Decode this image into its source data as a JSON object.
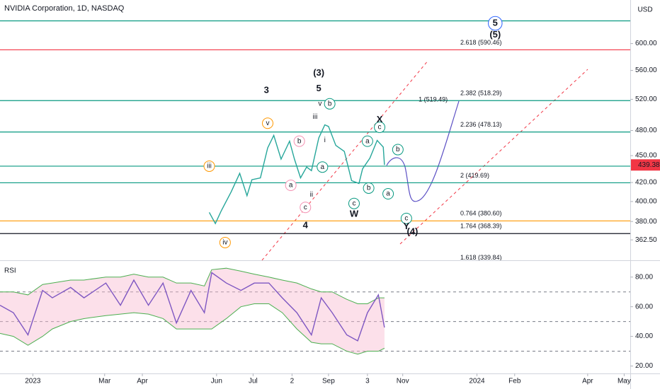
{
  "header": {
    "title": "NVIDIA Corporation, 1D, NASDAQ",
    "currency": "USD"
  },
  "chart_data": [
    {
      "type": "line",
      "color": "#26a69a",
      "log": true,
      "x": [
        "2023-05-26",
        "2023-05-31",
        "2023-06-05",
        "2023-06-13",
        "2023-06-20",
        "2023-06-26",
        "2023-06-30",
        "2023-07-07",
        "2023-07-13",
        "2023-07-18",
        "2023-07-24",
        "2023-07-31",
        "2023-08-04",
        "2023-08-09",
        "2023-08-14",
        "2023-08-18",
        "2023-08-24",
        "2023-08-29",
        "2023-09-01",
        "2023-09-07",
        "2023-09-14",
        "2023-09-20",
        "2023-09-26",
        "2023-09-29",
        "2023-10-05",
        "2023-10-11",
        "2023-10-16",
        "2023-10-17"
      ],
      "values": [
        389,
        378,
        391,
        410,
        430,
        406,
        423,
        425,
        459,
        474,
        446,
        467,
        446,
        425,
        437,
        433,
        471,
        487,
        485,
        462,
        455,
        422,
        419,
        435,
        447,
        468,
        460,
        439.38
      ],
      "xlim": [
        "2022-12-05",
        "2024-05-06"
      ],
      "xticks": [
        {
          "value": "2023-01-01",
          "label": "2023"
        },
        {
          "value": "2023-03-01",
          "label": "Mar"
        },
        {
          "value": "2023-04-01",
          "label": "Apr"
        },
        {
          "value": "2023-06-01",
          "label": "Jun"
        },
        {
          "value": "2023-07-01",
          "label": "Jul"
        },
        {
          "value": "2023-08-02",
          "label": "2"
        },
        {
          "value": "2023-09-01",
          "label": "Sep"
        },
        {
          "value": "2023-10-03",
          "label": "3"
        },
        {
          "value": "2023-11-01",
          "label": "Nov"
        },
        {
          "value": "2024-01-01",
          "label": "2024"
        },
        {
          "value": "2024-02-01",
          "label": "Feb"
        },
        {
          "value": "2024-04-01",
          "label": "Apr"
        },
        {
          "value": "2024-05-01",
          "label": "May"
        }
      ],
      "ylim": [
        344,
        671
      ],
      "yticks": [
        {
          "value": 600,
          "label": "600.00"
        },
        {
          "value": 560,
          "label": "560.00"
        },
        {
          "value": 520,
          "label": "520.00"
        },
        {
          "value": 480,
          "label": "480.00"
        },
        {
          "value": 450,
          "label": "450.00"
        },
        {
          "value": 420,
          "label": "420.00"
        },
        {
          "value": 400,
          "label": "400.00"
        },
        {
          "value": 380,
          "label": "380.00"
        },
        {
          "value": 362.5,
          "label": "362.50"
        }
      ],
      "last_price": 439.38,
      "last_price_color": "#f23645",
      "levels": [
        {
          "value": 636,
          "color": "#089981"
        },
        {
          "value": 590.46,
          "label": "2.618 (590.46)",
          "color": "#f23645"
        },
        {
          "value": 518.29,
          "label": "2.382 (518.29)",
          "color": "#089981"
        },
        {
          "value": 478.13,
          "label": "2.236 (478.13)",
          "color": "#089981"
        },
        {
          "value": 438,
          "color": "#089981"
        },
        {
          "value": 419.69,
          "label": "2 (419.69)",
          "color": "#089981"
        },
        {
          "value": 380.6,
          "label": "0.764 (380.60)",
          "color": "#ff9800"
        },
        {
          "value": 368.39,
          "label": "1.764 (368.39)",
          "color": "#131722"
        },
        {
          "value": 339.84,
          "label": "1.618 (339.84)",
          "color": "#2962ff"
        }
      ],
      "annotations": [
        {
          "text": "1 (519.49)",
          "x": "2023-11-26",
          "y": 519.49,
          "color": "#089981",
          "size": 9
        },
        {
          "text": "(3)",
          "x": "2023-08-24",
          "y": 556,
          "color": "#ff9800",
          "size": 13
        },
        {
          "text": "3",
          "x": "2023-07-12",
          "y": 532,
          "color": "#2962ff",
          "size": 13
        },
        {
          "text": "5",
          "x": "2023-08-24",
          "y": 534,
          "color": "#2962ff",
          "size": 13
        },
        {
          "text": "iii",
          "x": "2023-05-26",
          "y": 438,
          "color": "#ff9800",
          "circled": true
        },
        {
          "text": "v",
          "x": "2023-07-13",
          "y": 489,
          "color": "#ff9800",
          "circled": true
        },
        {
          "text": "iv",
          "x": "2023-06-08",
          "y": 360,
          "color": "#ff9800",
          "circled": true
        },
        {
          "text": "iii",
          "x": "2023-08-21",
          "y": 497,
          "color": "#089981"
        },
        {
          "text": "v",
          "x": "2023-08-25",
          "y": 514,
          "color": "#089981"
        },
        {
          "text": "b",
          "x": "2023-09-02",
          "y": 514,
          "color": "#089981",
          "circled": true
        },
        {
          "text": "i",
          "x": "2023-08-29",
          "y": 468,
          "color": "#f48fb1"
        },
        {
          "text": "a",
          "x": "2023-08-27",
          "y": 437,
          "color": "#089981",
          "circled": true
        },
        {
          "text": "ii",
          "x": "2023-08-18",
          "y": 407,
          "color": "#089981"
        },
        {
          "text": "b",
          "x": "2023-08-08",
          "y": 467,
          "color": "#f48fb1",
          "circled": true
        },
        {
          "text": "a",
          "x": "2023-08-01",
          "y": 417,
          "color": "#f48fb1",
          "circled": true
        },
        {
          "text": "c",
          "x": "2023-08-13",
          "y": 394,
          "color": "#f48fb1",
          "circled": true
        },
        {
          "text": "4",
          "x": "2023-08-13",
          "y": 376,
          "color": "#2962ff",
          "size": 13
        },
        {
          "text": "a",
          "x": "2023-10-03",
          "y": 467,
          "color": "#089981",
          "circled": true
        },
        {
          "text": "b",
          "x": "2023-10-04",
          "y": 414,
          "color": "#089981",
          "circled": true
        },
        {
          "text": "c",
          "x": "2023-10-13",
          "y": 484,
          "color": "#089981",
          "circled": true
        },
        {
          "text": "X",
          "x": "2023-10-13",
          "y": 493,
          "color": "#131722",
          "size": 13
        },
        {
          "text": "c",
          "x": "2023-09-22",
          "y": 398,
          "color": "#089981",
          "circled": true
        },
        {
          "text": "W",
          "x": "2023-09-22",
          "y": 387,
          "color": "#131722",
          "size": 13
        },
        {
          "text": "b",
          "x": "2023-10-28",
          "y": 457,
          "color": "#089981",
          "circled": true
        },
        {
          "text": "a",
          "x": "2023-10-20",
          "y": 408,
          "color": "#089981",
          "circled": true
        },
        {
          "text": "c",
          "x": "2023-11-04",
          "y": 383,
          "color": "#089981",
          "circled": true
        },
        {
          "text": "Y",
          "x": "2023-11-04",
          "y": 375,
          "color": "#131722",
          "size": 13
        },
        {
          "text": "(4)",
          "x": "2023-11-09",
          "y": 370,
          "color": "#ff9800",
          "size": 13
        },
        {
          "text": "5",
          "x": "2024-01-16",
          "y": 632,
          "color": "#2962ff",
          "circled": true,
          "size": 13
        },
        {
          "text": "(5)",
          "x": "2024-01-16",
          "y": 613,
          "color": "#ff9800",
          "size": 13
        }
      ]
    },
    {
      "type": "line",
      "title": "RSI",
      "color": "#7e57c2",
      "x": [
        "2022-12-05",
        "2022-12-16",
        "2022-12-28",
        "2023-01-09",
        "2023-01-17",
        "2023-02-01",
        "2023-02-12",
        "2023-03-02",
        "2023-03-14",
        "2023-03-25",
        "2023-04-06",
        "2023-04-18",
        "2023-04-29",
        "2023-05-11",
        "2023-05-22",
        "2023-05-28",
        "2023-06-09",
        "2023-06-21",
        "2023-07-02",
        "2023-07-14",
        "2023-07-25",
        "2023-08-06",
        "2023-08-18",
        "2023-08-26",
        "2023-09-04",
        "2023-09-16",
        "2023-09-25",
        "2023-10-03",
        "2023-10-12",
        "2023-10-17"
      ],
      "values": [
        61,
        56,
        41,
        71,
        66,
        73,
        66,
        76,
        61,
        78,
        61,
        76,
        49,
        71,
        56,
        83,
        76,
        71,
        76,
        76,
        66,
        56,
        41,
        66,
        56,
        41,
        37,
        56,
        68,
        46
      ],
      "band": {
        "color": "#f8bbd0",
        "upper": [
          70,
          70,
          68,
          75,
          76,
          78,
          78,
          80,
          80,
          82,
          80,
          80,
          76,
          76,
          74,
          85,
          86,
          84,
          82,
          80,
          78,
          76,
          72,
          70,
          70,
          65,
          62,
          62,
          66,
          66
        ],
        "lower": [
          42,
          40,
          34,
          40,
          45,
          50,
          52,
          54,
          55,
          56,
          55,
          52,
          45,
          45,
          45,
          45,
          52,
          60,
          62,
          62,
          56,
          45,
          36,
          35,
          35,
          30,
          28,
          30,
          30,
          32
        ]
      },
      "ylim": [
        15,
        88
      ],
      "yticks": [
        {
          "value": 80,
          "label": "80.00"
        },
        {
          "value": 60,
          "label": "60.00"
        },
        {
          "value": 40,
          "label": "40.00"
        },
        {
          "value": 20,
          "label": "20.00"
        }
      ],
      "levels": [
        70,
        50,
        30
      ]
    }
  ]
}
